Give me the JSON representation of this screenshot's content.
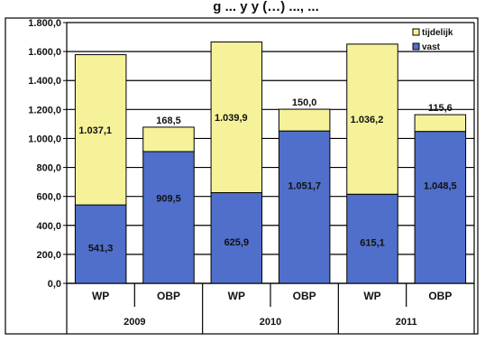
{
  "chart_data": {
    "type": "bar",
    "stacked": true,
    "title": "g ... y y (…) ..., ...",
    "categories": [
      "WP",
      "OBP",
      "WP",
      "OBP",
      "WP",
      "OBP"
    ],
    "groups": [
      {
        "label": "2009",
        "categories": [
          "WP",
          "OBP"
        ]
      },
      {
        "label": "2010",
        "categories": [
          "WP",
          "OBP"
        ]
      },
      {
        "label": "2011",
        "categories": [
          "WP",
          "OBP"
        ]
      }
    ],
    "series": [
      {
        "name": "vast",
        "color": "#4f6fca",
        "values": [
          541.3,
          909.5,
          625.9,
          1051.7,
          615.1,
          1048.5
        ],
        "labels": [
          "541,3",
          "909,5",
          "625,9",
          "1.051,7",
          "615,1",
          "1.048,5"
        ]
      },
      {
        "name": "tijdelijk",
        "color": "#f6f29a",
        "values": [
          1037.1,
          168.5,
          1039.9,
          150.0,
          1036.2,
          115.6
        ],
        "labels": [
          "1.037,1",
          "168,5",
          "1.039,9",
          "150,0",
          "1.036,2",
          "115,6"
        ]
      }
    ],
    "ylim": [
      0,
      1800
    ],
    "yticks": [
      0,
      200,
      400,
      600,
      800,
      1000,
      1200,
      1400,
      1600,
      1800
    ],
    "ytick_labels": [
      "0,0",
      "200,0",
      "400,0",
      "600,0",
      "800,0",
      "1.000,0",
      "1.200,0",
      "1.400,0",
      "1.600,0",
      "1.800,0"
    ],
    "grid": true,
    "legend": {
      "position": "top-right",
      "entries": [
        "tijdelijk",
        "vast"
      ]
    },
    "colors": {
      "frame": "#000000",
      "grid": "#000000",
      "bar_outline": "#000000"
    }
  }
}
